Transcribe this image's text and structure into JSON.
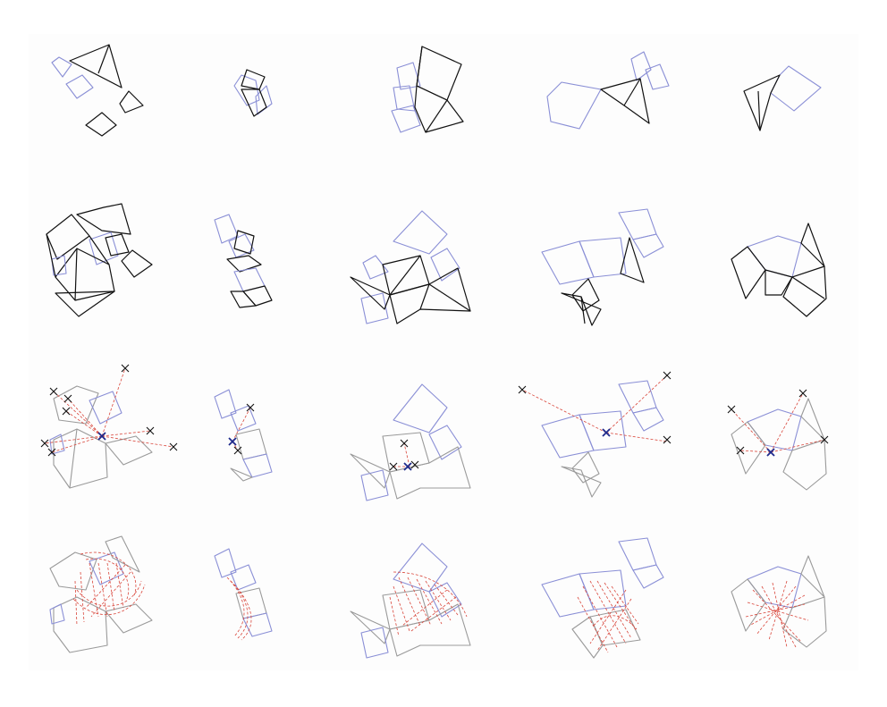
{
  "figure": {
    "rows": [
      "row-1-input-tiles",
      "row-2-assembled-structures",
      "row-3-target-points",
      "row-4-correspondence-field"
    ],
    "columns": 5,
    "colors": {
      "black_edges": "#111111",
      "blue_edges": "#8a8fd6",
      "gray_edges": "#9a9a9a",
      "red_dashed": "#d9463b",
      "blue_marker": "#1f2a8c"
    }
  }
}
